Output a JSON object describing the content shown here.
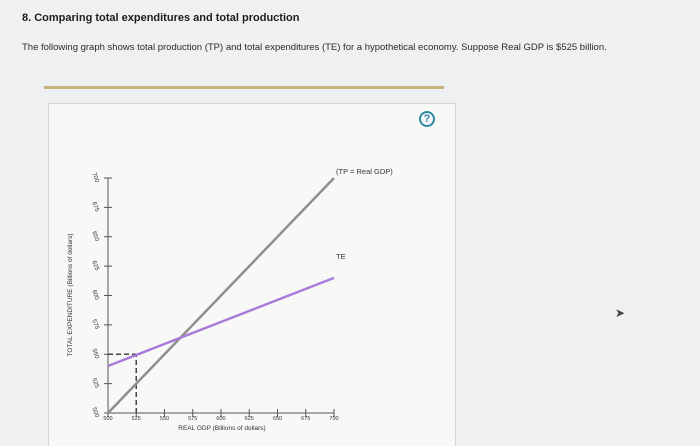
{
  "question": {
    "title": "8. Comparing total expenditures and total production",
    "description": "The following graph shows total production (TP) and total expenditures (TE) for a hypothetical economy. Suppose Real GDP is $525 billion."
  },
  "help": {
    "icon": "question-icon",
    "glyph": "?"
  },
  "colors": {
    "tp_line": "#8f8f8f",
    "te_line": "#a77bd8",
    "accent": "#2f8aa0",
    "divider": "#c8b47a"
  },
  "chart_data": {
    "type": "line",
    "xlabel": "REAL GDP (Billions of dollars)",
    "ylabel": "TOTAL EXPENDITURE (Billions of dollars)",
    "xlim": [
      500,
      700
    ],
    "ylim": [
      500,
      700
    ],
    "x_ticks": [
      "500",
      "525",
      "550",
      "575",
      "600",
      "625",
      "650",
      "675",
      "700"
    ],
    "y_ticks": [
      "500",
      "525",
      "550",
      "575",
      "600",
      "625",
      "650",
      "675",
      "700"
    ],
    "series": [
      {
        "name": "(TP = Real GDP)",
        "x": [
          500,
          700
        ],
        "y": [
          500,
          700
        ]
      },
      {
        "name": "TE",
        "x": [
          500,
          700
        ],
        "y": [
          540,
          615
        ]
      }
    ],
    "reference": {
      "x": 525,
      "y_from": 500,
      "y_to": 550,
      "style": "dashed"
    }
  }
}
